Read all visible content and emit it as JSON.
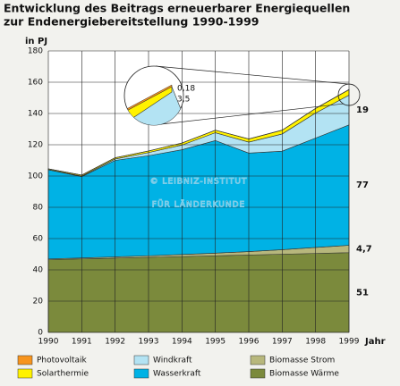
{
  "chart_data": {
    "type": "stacked_area",
    "title": [
      "Entwicklung des Beitrags erneuerbarer Energiequellen",
      "zur Endenergiebereitstellung 1990-1999"
    ],
    "y_label": "in PJ",
    "x_label": "Jahr",
    "watermark": [
      "© LEIBNIZ-INSTITUT",
      "FÜR LÄNDERKUNDE"
    ],
    "x": [
      1990,
      1991,
      1992,
      1993,
      1994,
      1995,
      1996,
      1997,
      1998,
      1999
    ],
    "xlim": [
      1990,
      1999
    ],
    "xticks": [
      1990,
      1991,
      1992,
      1993,
      1994,
      1995,
      1996,
      1997,
      1998,
      1999
    ],
    "ylim": [
      0,
      180
    ],
    "yticks": [
      0,
      20,
      40,
      60,
      80,
      100,
      120,
      140,
      160,
      180
    ],
    "grid": true,
    "series": [
      {
        "name": "Photovoltaik",
        "color": "#f7941d",
        "values": [
          0.001,
          0.002,
          0.01,
          0.02,
          0.03,
          0.04,
          0.05,
          0.07,
          0.1,
          0.18
        ],
        "value_labels": [
          null,
          null,
          null,
          null,
          null,
          null,
          null,
          null,
          null,
          "0,18"
        ]
      },
      {
        "name": "Solarthermie",
        "color": "#fff200",
        "values": [
          0.5,
          0.6,
          0.8,
          1,
          1.3,
          1.6,
          2,
          2.4,
          2.9,
          3.5
        ],
        "value_labels": [
          null,
          null,
          null,
          null,
          null,
          null,
          null,
          null,
          null,
          "3,5"
        ]
      },
      {
        "name": "Windkraft",
        "color": "#b3e3f3",
        "values": [
          0.1,
          0.4,
          0.9,
          2,
          3,
          5,
          7,
          11,
          16,
          19
        ],
        "value_labels": [
          null,
          null,
          null,
          null,
          null,
          null,
          null,
          null,
          null,
          "19"
        ]
      },
      {
        "name": "Wasserkraft",
        "color": "#00b2e5",
        "values": [
          57,
          52,
          61.7,
          64,
          67,
          72,
          63,
          63,
          70,
          77
        ],
        "value_labels": [
          null,
          null,
          null,
          null,
          null,
          null,
          null,
          null,
          null,
          "77"
        ]
      },
      {
        "name": "Biomasse Strom",
        "color": "#b7b77c",
        "values": [
          0.5,
          0.6,
          0.8,
          1,
          1.3,
          1.7,
          2.2,
          2.9,
          3.8,
          4.7
        ],
        "value_labels": [
          null,
          null,
          null,
          null,
          null,
          null,
          null,
          null,
          null,
          "4,7"
        ]
      },
      {
        "name": "Biomasse Wärme",
        "color": "#7b8a3c",
        "values": [
          46.5,
          47,
          47.5,
          48,
          48.5,
          49,
          49.5,
          50,
          50.5,
          51
        ],
        "value_labels": [
          null,
          null,
          null,
          null,
          null,
          null,
          null,
          null,
          null,
          "51"
        ]
      }
    ]
  }
}
